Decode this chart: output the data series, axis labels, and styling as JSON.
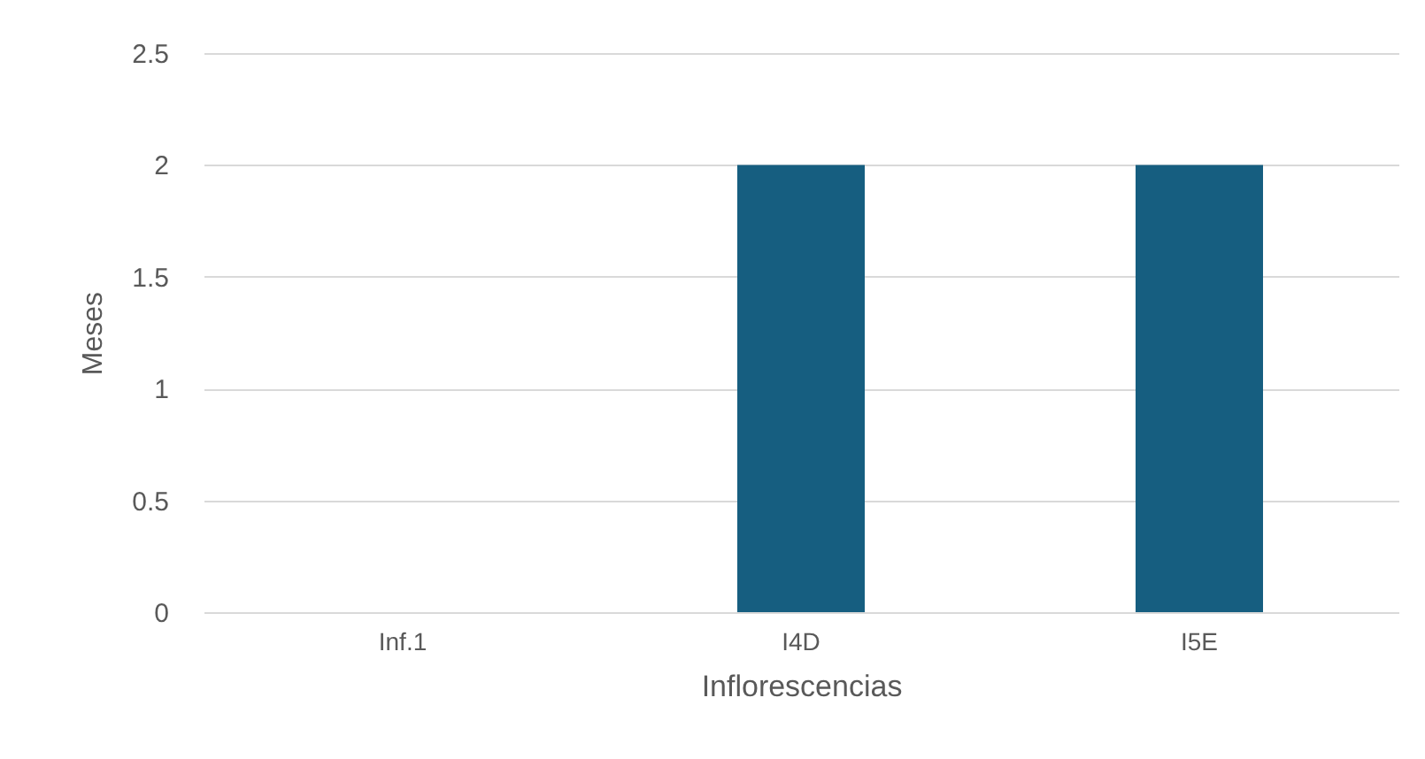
{
  "chart_data": {
    "type": "bar",
    "xlabel": "Inflorescencias",
    "ylabel": "Meses",
    "categories": [
      "Inf.1",
      "I4D",
      "I5E"
    ],
    "values": [
      0,
      2,
      2
    ],
    "color": "#165e80",
    "ylim": [
      0,
      2.5
    ],
    "yticks": [
      0,
      0.5,
      1,
      1.5,
      2,
      2.5
    ],
    "grid": "y"
  }
}
